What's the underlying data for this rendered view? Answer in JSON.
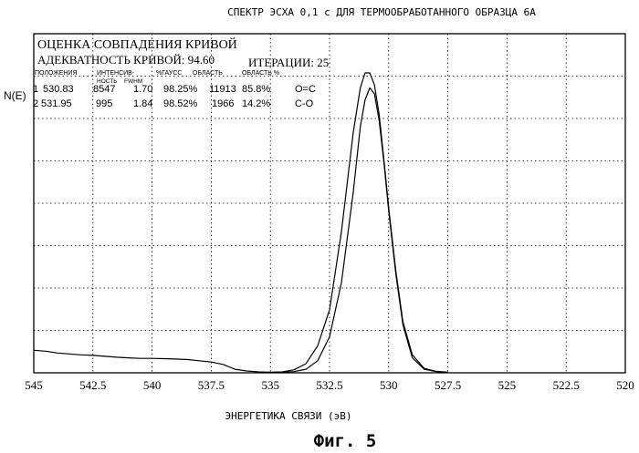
{
  "chart_data": {
    "type": "line",
    "title": "СПЕКТР ЭСХА 0,1 с ДЛЯ ТЕРМООБРАБОТАННОГО ОБРАЗЦА 6А",
    "xlabel": "ЭНЕРГЕТИКА СВЯЗИ (эВ)",
    "ylabel": "N(E)",
    "caption": "Фиг. 5",
    "xlim": [
      545,
      520
    ],
    "x_reversed": true,
    "ylim": [
      0,
      1.0
    ],
    "grid": true,
    "x_ticks": [
      "545",
      "542.5",
      "540",
      "537.5",
      "535",
      "532.5",
      "530",
      "527.5",
      "525",
      "522.5",
      "520"
    ],
    "fit_info": {
      "line1": "ОЦЕНКА СОВПАДЕНИЯ КРИВОЙ",
      "line2_label": "АДЕКВАТНОСТЬ КРИВОЙ: 94.60",
      "iterations_label": "ИТЕРАЦИИ: 25",
      "col_headers": [
        "ПОЛОЖЕНИЯ",
        "ИНТЕНСИВ-",
        "FWHM",
        "%ГАУСС",
        "ОБЛАСТЬ",
        "ОБЛАСТЬ %"
      ],
      "col_header_sub": "НОСТЬ",
      "peaks": [
        {
          "num": "1",
          "position": "530.83",
          "intensity": "8547",
          "fwhm": "1.70",
          "gauss": "98.25%",
          "area": "11913",
          "area_pct": "85.8%",
          "assign": "O=C"
        },
        {
          "num": "2",
          "position": "531.95",
          "intensity": "995",
          "fwhm": "1.84",
          "gauss": "98.52%",
          "area": "1966",
          "area_pct": "14.2%",
          "assign": "C-O"
        }
      ]
    },
    "series": [
      {
        "role": "envelope",
        "x": [
          545,
          544.5,
          544,
          543.5,
          543,
          542.5,
          542,
          541.5,
          541,
          540.5,
          540,
          539.5,
          539,
          538.5,
          538,
          537.5,
          537,
          536.5,
          536,
          535.5,
          535,
          534.5,
          534,
          533.5,
          533,
          532.5,
          532,
          531.5,
          531.2,
          531,
          530.8,
          530.6,
          530.4,
          530.2,
          530,
          529.7,
          529.4,
          529,
          528.5,
          528,
          527.5
        ],
        "y": [
          0.075,
          0.072,
          0.066,
          0.063,
          0.06,
          0.058,
          0.055,
          0.052,
          0.05,
          0.048,
          0.048,
          0.047,
          0.046,
          0.044,
          0.04,
          0.036,
          0.028,
          0.012,
          0.006,
          0.003,
          0.002,
          0.003,
          0.01,
          0.03,
          0.09,
          0.21,
          0.47,
          0.8,
          0.95,
          1.0,
          1.0,
          0.96,
          0.86,
          0.71,
          0.55,
          0.34,
          0.17,
          0.06,
          0.015,
          0.005,
          0.002
        ]
      },
      {
        "role": "component",
        "x": [
          535,
          534.5,
          534,
          533.5,
          533,
          532.5,
          532,
          531.5,
          531.2,
          531,
          530.8,
          530.6,
          530.4,
          530.2,
          530,
          529.7,
          529.4,
          529,
          528.5,
          528,
          527.5
        ],
        "y": [
          0.001,
          0.002,
          0.004,
          0.012,
          0.04,
          0.12,
          0.3,
          0.6,
          0.82,
          0.91,
          0.95,
          0.93,
          0.84,
          0.7,
          0.54,
          0.33,
          0.16,
          0.05,
          0.012,
          0.004,
          0.001
        ]
      }
    ]
  }
}
